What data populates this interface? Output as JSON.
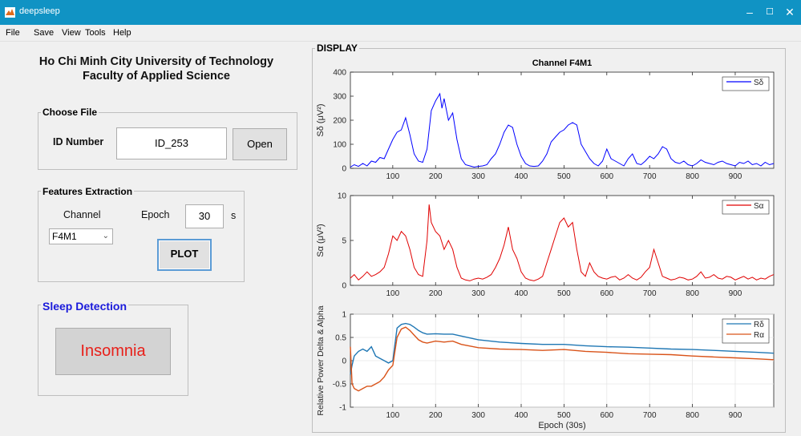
{
  "window": {
    "title": "deepsleep",
    "minimize": "–",
    "maximize": "☐",
    "close": "✕"
  },
  "menu": [
    "File",
    "Save",
    "View",
    "Tools",
    "Help"
  ],
  "header": {
    "line1": "Ho Chi Minh City University of Technology",
    "line2": "Faculty of Applied Science"
  },
  "choose_file": {
    "title": "Choose File",
    "id_label": "ID Number",
    "id_value": "ID_253",
    "open_label": "Open"
  },
  "features": {
    "title": "Features Extraction",
    "channel_label": "Channel",
    "channel_value": "F4M1",
    "epoch_label": "Epoch",
    "epoch_value": "30",
    "epoch_unit": "s",
    "plot_label": "PLOT"
  },
  "sleep": {
    "title": "Sleep Detection",
    "result": "Insomnia",
    "result_color": "#e8201a",
    "title_color": "#1a1adb"
  },
  "display": {
    "title": "DISPLAY"
  },
  "chart_data": [
    {
      "type": "line",
      "title": "Channel F4M1",
      "ylabel": "Sδ (μV²)",
      "xlim": [
        1,
        990
      ],
      "ylim": [
        0,
        400
      ],
      "yticks": [
        0,
        100,
        200,
        300,
        400
      ],
      "xticks": [
        100,
        200,
        300,
        400,
        500,
        600,
        700,
        800,
        900
      ],
      "legend": "top-right",
      "series": [
        {
          "name": "Sδ",
          "color": "#0000ff",
          "x": [
            1,
            10,
            20,
            30,
            40,
            50,
            60,
            70,
            80,
            90,
            100,
            110,
            120,
            130,
            140,
            150,
            160,
            170,
            180,
            190,
            200,
            210,
            215,
            220,
            230,
            240,
            250,
            260,
            270,
            280,
            290,
            300,
            310,
            320,
            330,
            340,
            350,
            360,
            370,
            380,
            390,
            400,
            410,
            420,
            430,
            440,
            450,
            460,
            470,
            480,
            490,
            500,
            510,
            520,
            530,
            540,
            550,
            560,
            570,
            580,
            590,
            600,
            610,
            620,
            630,
            640,
            650,
            660,
            670,
            680,
            690,
            700,
            710,
            720,
            730,
            740,
            750,
            760,
            770,
            780,
            790,
            800,
            810,
            820,
            830,
            840,
            850,
            860,
            870,
            880,
            890,
            900,
            910,
            920,
            930,
            940,
            950,
            960,
            970,
            980,
            990
          ],
          "values": [
            5,
            15,
            8,
            20,
            10,
            30,
            25,
            45,
            40,
            80,
            120,
            150,
            160,
            210,
            140,
            60,
            30,
            25,
            80,
            240,
            280,
            310,
            250,
            290,
            200,
            230,
            120,
            40,
            15,
            10,
            5,
            8,
            10,
            15,
            40,
            60,
            100,
            150,
            180,
            170,
            100,
            50,
            20,
            10,
            8,
            10,
            30,
            60,
            110,
            130,
            150,
            160,
            180,
            190,
            180,
            100,
            70,
            40,
            20,
            10,
            30,
            80,
            40,
            30,
            20,
            10,
            40,
            60,
            20,
            15,
            30,
            50,
            40,
            60,
            90,
            80,
            40,
            25,
            20,
            30,
            15,
            10,
            20,
            35,
            25,
            20,
            15,
            25,
            30,
            20,
            15,
            10,
            25,
            20,
            30,
            15,
            20,
            10,
            25,
            15,
            20
          ]
        }
      ]
    },
    {
      "type": "line",
      "ylabel": "Sα (μV²)",
      "xlim": [
        1,
        990
      ],
      "ylim": [
        0,
        10
      ],
      "yticks": [
        0,
        5,
        10
      ],
      "xticks": [
        100,
        200,
        300,
        400,
        500,
        600,
        700,
        800,
        900
      ],
      "legend": "top-right",
      "series": [
        {
          "name": "Sα",
          "color": "#e00000",
          "x": [
            1,
            10,
            20,
            30,
            40,
            50,
            60,
            70,
            80,
            90,
            100,
            110,
            120,
            130,
            140,
            150,
            160,
            170,
            180,
            185,
            190,
            200,
            210,
            220,
            230,
            240,
            250,
            260,
            270,
            280,
            290,
            300,
            310,
            320,
            330,
            340,
            350,
            360,
            370,
            380,
            390,
            400,
            410,
            420,
            430,
            440,
            450,
            460,
            470,
            480,
            490,
            500,
            510,
            520,
            530,
            540,
            550,
            560,
            570,
            580,
            590,
            600,
            610,
            620,
            630,
            640,
            650,
            660,
            670,
            680,
            690,
            700,
            710,
            720,
            730,
            740,
            750,
            760,
            770,
            780,
            790,
            800,
            810,
            820,
            830,
            840,
            850,
            860,
            870,
            880,
            890,
            900,
            910,
            920,
            930,
            940,
            950,
            960,
            970,
            980,
            990
          ],
          "values": [
            0.8,
            1.2,
            0.6,
            1.0,
            1.5,
            1.0,
            1.2,
            1.5,
            2.0,
            3.5,
            5.5,
            5.0,
            6.0,
            5.5,
            4.0,
            2.0,
            1.2,
            1.0,
            5.0,
            9.0,
            7.0,
            6.0,
            5.5,
            4.0,
            5.0,
            4.0,
            2.0,
            0.8,
            0.6,
            0.5,
            0.7,
            0.8,
            0.7,
            0.9,
            1.2,
            2.0,
            3.0,
            4.5,
            6.5,
            4.0,
            3.0,
            1.5,
            0.8,
            0.6,
            0.5,
            0.7,
            1.0,
            2.5,
            4.0,
            5.5,
            7.0,
            7.5,
            6.5,
            7.0,
            4.0,
            1.5,
            1.0,
            2.5,
            1.5,
            1.0,
            0.8,
            0.7,
            0.9,
            1.0,
            0.6,
            0.8,
            1.2,
            0.8,
            0.6,
            0.9,
            1.5,
            2.0,
            4.0,
            2.5,
            1.0,
            0.8,
            0.6,
            0.7,
            0.9,
            0.8,
            0.6,
            0.7,
            1.0,
            1.5,
            0.8,
            0.9,
            1.2,
            0.8,
            0.7,
            1.0,
            0.9,
            0.6,
            0.8,
            1.0,
            0.7,
            0.9,
            0.6,
            0.8,
            0.7,
            1.0,
            1.2
          ]
        }
      ]
    },
    {
      "type": "line",
      "ylabel": "Relative Power Delta & Alpha",
      "xlabel": "Epoch (30s)",
      "xlim": [
        1,
        990
      ],
      "ylim": [
        -1,
        1
      ],
      "yticks": [
        -1,
        -0.5,
        0,
        0.5,
        1
      ],
      "xticks": [
        100,
        200,
        300,
        400,
        500,
        600,
        700,
        800,
        900
      ],
      "grid": true,
      "legend": "top-right",
      "series": [
        {
          "name": "Rδ",
          "color": "#1f77b4",
          "x": [
            1,
            5,
            10,
            20,
            30,
            40,
            50,
            60,
            70,
            80,
            90,
            100,
            110,
            120,
            130,
            140,
            150,
            160,
            170,
            180,
            200,
            220,
            240,
            260,
            300,
            350,
            400,
            450,
            500,
            550,
            600,
            650,
            700,
            750,
            800,
            850,
            900,
            950,
            990
          ],
          "values": [
            -0.3,
            -0.1,
            0.1,
            0.2,
            0.25,
            0.2,
            0.3,
            0.1,
            0.05,
            0.0,
            -0.05,
            0.0,
            0.7,
            0.78,
            0.8,
            0.78,
            0.72,
            0.65,
            0.6,
            0.57,
            0.58,
            0.57,
            0.57,
            0.53,
            0.45,
            0.4,
            0.37,
            0.35,
            0.35,
            0.32,
            0.3,
            0.29,
            0.27,
            0.25,
            0.24,
            0.22,
            0.2,
            0.18,
            0.16
          ]
        },
        {
          "name": "Rα",
          "color": "#d95319",
          "x": [
            1,
            5,
            10,
            20,
            30,
            40,
            50,
            60,
            70,
            80,
            90,
            100,
            110,
            120,
            130,
            140,
            150,
            160,
            170,
            180,
            200,
            220,
            240,
            260,
            300,
            350,
            400,
            450,
            500,
            550,
            600,
            650,
            700,
            750,
            800,
            850,
            900,
            950,
            990
          ],
          "values": [
            0.3,
            -0.5,
            -0.6,
            -0.65,
            -0.6,
            -0.55,
            -0.55,
            -0.5,
            -0.45,
            -0.35,
            -0.2,
            -0.1,
            0.5,
            0.68,
            0.72,
            0.65,
            0.55,
            0.45,
            0.4,
            0.38,
            0.42,
            0.4,
            0.42,
            0.35,
            0.28,
            0.25,
            0.24,
            0.22,
            0.24,
            0.2,
            0.18,
            0.15,
            0.14,
            0.13,
            0.1,
            0.08,
            0.06,
            0.04,
            0.02
          ]
        }
      ]
    }
  ]
}
